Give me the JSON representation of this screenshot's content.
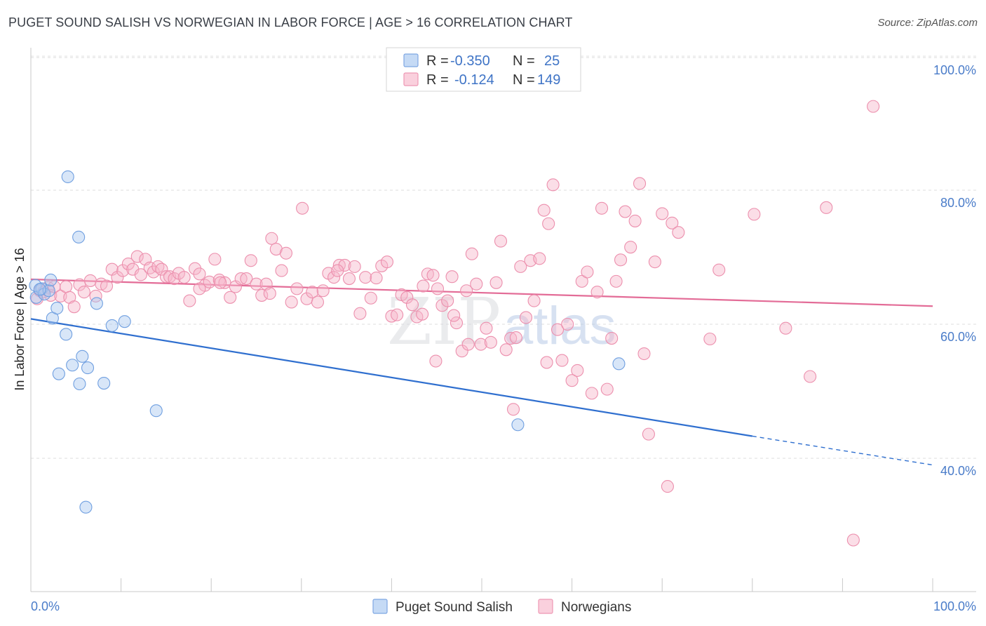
{
  "title": "PUGET SOUND SALISH VS NORWEGIAN IN LABOR FORCE | AGE > 16 CORRELATION CHART",
  "source": "Source: ZipAtlas.com",
  "watermark_zip": "ZIP",
  "watermark_atlas": "atlas",
  "chart_data": {
    "type": "scatter",
    "ylabel": "In Labor Force | Age > 16",
    "xlim": [
      0,
      100
    ],
    "ylim": [
      20,
      103
    ],
    "x_tick_labels": [
      "0.0%",
      "100.0%"
    ],
    "y_ticks": [
      40,
      60,
      80,
      100
    ],
    "y_tick_labels": [
      "40.0%",
      "60.0%",
      "80.0%",
      "100.0%"
    ],
    "grid": true,
    "legend": {
      "position": "top-center",
      "rows": [
        {
          "r_label": "R = ",
          "r_value": "-0.350",
          "n_label": "N = ",
          "n_value": "25",
          "color": "#a9c7f0"
        },
        {
          "r_label": "R = ",
          "r_value": "-0.124",
          "n_label": "N = ",
          "n_value": "149",
          "color": "#f7b6c9"
        }
      ]
    },
    "series": [
      {
        "name": "Puget Sound Salish",
        "color": "#a9c7f0",
        "stroke": "#6f9fe0",
        "trend_color": "#2f6fcf",
        "trend": {
          "x0": 0,
          "y0": 60.8,
          "x1": 80,
          "y1": 43.3,
          "dash_to_x": 100,
          "dash_to_y": 39.0
        },
        "points": [
          [
            0.5,
            65.8
          ],
          [
            0.6,
            64.0
          ],
          [
            1.2,
            65.3
          ],
          [
            1.5,
            64.5
          ],
          [
            2.0,
            65.0
          ],
          [
            2.2,
            66.6
          ],
          [
            2.4,
            60.9
          ],
          [
            2.9,
            62.4
          ],
          [
            3.1,
            52.6
          ],
          [
            3.9,
            58.5
          ],
          [
            4.1,
            82.0
          ],
          [
            4.6,
            53.9
          ],
          [
            5.3,
            73.0
          ],
          [
            5.4,
            51.1
          ],
          [
            5.7,
            55.2
          ],
          [
            6.3,
            53.5
          ],
          [
            7.3,
            63.1
          ],
          [
            8.1,
            51.2
          ],
          [
            9.0,
            59.8
          ],
          [
            10.4,
            60.4
          ],
          [
            13.9,
            47.1
          ],
          [
            6.1,
            32.7
          ],
          [
            54.0,
            45.0
          ],
          [
            65.2,
            54.1
          ],
          [
            1.0,
            65.2
          ]
        ]
      },
      {
        "name": "Norwegians",
        "color": "#f7b6c9",
        "stroke": "#ec8fad",
        "trend_color": "#e36c97",
        "trend": {
          "x0": 0,
          "y0": 66.7,
          "x1": 100,
          "y1": 62.7
        },
        "points": [
          [
            0.7,
            63.8
          ],
          [
            1.0,
            65.0
          ],
          [
            1.4,
            64.8
          ],
          [
            1.9,
            65.5
          ],
          [
            2.2,
            64.3
          ],
          [
            2.6,
            65.6
          ],
          [
            3.3,
            64.2
          ],
          [
            3.9,
            65.6
          ],
          [
            4.3,
            64.0
          ],
          [
            4.8,
            62.6
          ],
          [
            5.4,
            65.9
          ],
          [
            5.9,
            64.8
          ],
          [
            6.6,
            66.5
          ],
          [
            7.2,
            64.2
          ],
          [
            7.8,
            66.0
          ],
          [
            8.4,
            65.7
          ],
          [
            9.0,
            68.2
          ],
          [
            9.6,
            67.0
          ],
          [
            10.2,
            68.0
          ],
          [
            10.8,
            69.0
          ],
          [
            11.3,
            68.2
          ],
          [
            11.8,
            70.1
          ],
          [
            12.2,
            67.4
          ],
          [
            12.7,
            69.7
          ],
          [
            13.2,
            68.4
          ],
          [
            13.6,
            67.8
          ],
          [
            14.1,
            68.6
          ],
          [
            14.5,
            68.2
          ],
          [
            15.0,
            67.1
          ],
          [
            15.4,
            67.1
          ],
          [
            15.9,
            66.8
          ],
          [
            16.4,
            67.6
          ],
          [
            17.0,
            67.0
          ],
          [
            17.6,
            63.5
          ],
          [
            18.2,
            68.3
          ],
          [
            18.7,
            67.5
          ],
          [
            19.3,
            65.8
          ],
          [
            19.8,
            66.3
          ],
          [
            20.4,
            69.7
          ],
          [
            20.9,
            66.6
          ],
          [
            21.5,
            66.2
          ],
          [
            22.1,
            64.0
          ],
          [
            22.7,
            65.6
          ],
          [
            23.3,
            66.8
          ],
          [
            23.9,
            66.8
          ],
          [
            24.4,
            69.5
          ],
          [
            25.0,
            66.0
          ],
          [
            25.6,
            64.3
          ],
          [
            26.1,
            66.0
          ],
          [
            26.7,
            72.8
          ],
          [
            27.2,
            71.2
          ],
          [
            27.8,
            68.0
          ],
          [
            28.3,
            70.6
          ],
          [
            28.9,
            63.3
          ],
          [
            29.5,
            65.3
          ],
          [
            30.1,
            77.3
          ],
          [
            30.6,
            63.8
          ],
          [
            31.2,
            64.8
          ],
          [
            31.8,
            63.3
          ],
          [
            32.4,
            65.0
          ],
          [
            33.0,
            67.6
          ],
          [
            33.6,
            67.0
          ],
          [
            34.2,
            68.8
          ],
          [
            34.8,
            68.8
          ],
          [
            35.3,
            66.8
          ],
          [
            35.9,
            68.6
          ],
          [
            36.5,
            61.6
          ],
          [
            37.1,
            67.0
          ],
          [
            37.7,
            63.9
          ],
          [
            38.3,
            66.9
          ],
          [
            38.9,
            68.7
          ],
          [
            39.5,
            69.3
          ],
          [
            40.0,
            61.2
          ],
          [
            40.6,
            61.4
          ],
          [
            41.1,
            64.4
          ],
          [
            41.7,
            64.0
          ],
          [
            42.3,
            62.9
          ],
          [
            42.8,
            61.1
          ],
          [
            43.4,
            61.5
          ],
          [
            44.0,
            67.5
          ],
          [
            44.6,
            67.3
          ],
          [
            45.1,
            65.3
          ],
          [
            45.6,
            62.8
          ],
          [
            46.2,
            63.5
          ],
          [
            46.7,
            67.1
          ],
          [
            47.2,
            60.2
          ],
          [
            47.8,
            56.0
          ],
          [
            48.3,
            65.0
          ],
          [
            48.9,
            70.5
          ],
          [
            49.4,
            66.0
          ],
          [
            49.9,
            57.0
          ],
          [
            50.5,
            59.4
          ],
          [
            51.0,
            57.3
          ],
          [
            51.6,
            66.2
          ],
          [
            52.1,
            72.4
          ],
          [
            52.7,
            56.2
          ],
          [
            53.2,
            57.9
          ],
          [
            53.8,
            58.0
          ],
          [
            54.3,
            68.6
          ],
          [
            54.9,
            61.0
          ],
          [
            55.4,
            69.5
          ],
          [
            55.8,
            63.5
          ],
          [
            56.4,
            69.8
          ],
          [
            56.9,
            77.0
          ],
          [
            57.4,
            75.0
          ],
          [
            57.9,
            80.8
          ],
          [
            58.4,
            59.2
          ],
          [
            58.9,
            54.6
          ],
          [
            59.5,
            60.0
          ],
          [
            60.0,
            51.6
          ],
          [
            60.6,
            53.1
          ],
          [
            61.1,
            66.4
          ],
          [
            61.7,
            67.8
          ],
          [
            62.2,
            49.7
          ],
          [
            62.8,
            64.8
          ],
          [
            63.3,
            77.3
          ],
          [
            63.9,
            50.3
          ],
          [
            64.4,
            57.9
          ],
          [
            64.9,
            66.4
          ],
          [
            65.4,
            69.6
          ],
          [
            65.9,
            76.8
          ],
          [
            66.5,
            71.5
          ],
          [
            67.0,
            75.4
          ],
          [
            67.5,
            81.0
          ],
          [
            68.0,
            55.6
          ],
          [
            68.5,
            43.6
          ],
          [
            69.2,
            69.3
          ],
          [
            70.0,
            76.5
          ],
          [
            70.6,
            35.8
          ],
          [
            71.1,
            75.1
          ],
          [
            71.8,
            73.7
          ],
          [
            75.3,
            57.8
          ],
          [
            76.3,
            68.1
          ],
          [
            80.2,
            76.4
          ],
          [
            83.7,
            59.4
          ],
          [
            86.4,
            52.2
          ],
          [
            88.2,
            77.4
          ],
          [
            91.2,
            27.8
          ],
          [
            93.4,
            92.5
          ],
          [
            48.5,
            57.0
          ],
          [
            34.0,
            68.0
          ],
          [
            43.5,
            65.7
          ],
          [
            44.9,
            54.5
          ],
          [
            26.5,
            64.6
          ],
          [
            21.0,
            66.2
          ],
          [
            18.7,
            65.3
          ],
          [
            46.9,
            61.3
          ],
          [
            53.5,
            47.3
          ],
          [
            57.2,
            54.3
          ]
        ]
      }
    ]
  }
}
